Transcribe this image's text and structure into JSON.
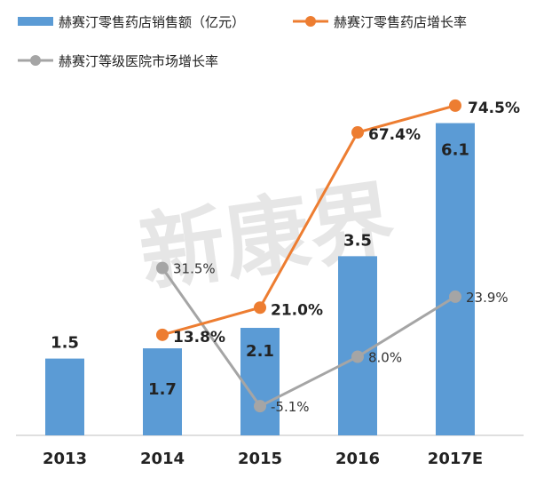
{
  "chart_data": {
    "type": "bar",
    "categories": [
      "2013",
      "2014",
      "2015",
      "2016",
      "2017E"
    ],
    "series": [
      {
        "name": "赫赛汀零售药店销售额（亿元）",
        "type": "bar",
        "values": [
          1.5,
          1.7,
          2.1,
          3.5,
          6.1
        ],
        "value_labels": [
          "1.5",
          "1.7",
          "2.1",
          "3.5",
          "6.1"
        ],
        "color": "#5b9bd5"
      },
      {
        "name": "赫赛汀零售药店增长率",
        "type": "line",
        "values": [
          null,
          13.8,
          21.0,
          67.4,
          74.5
        ],
        "value_labels": [
          "",
          "13.8%",
          "21.0%",
          "67.4%",
          "74.5%"
        ],
        "color": "#ed7d31"
      },
      {
        "name": "赫赛汀等级医院市场增长率",
        "type": "line",
        "values": [
          null,
          31.5,
          -5.1,
          8.0,
          23.9
        ],
        "value_labels": [
          "",
          "31.5%",
          "-5.1%",
          "8.0%",
          "23.9%"
        ],
        "color": "#a5a5a5"
      }
    ],
    "bar_ylim": [
      0,
      6.7
    ],
    "line_ylim": [
      -10,
      78
    ],
    "grid": false,
    "legend_position": "top",
    "watermark": "新康界"
  }
}
